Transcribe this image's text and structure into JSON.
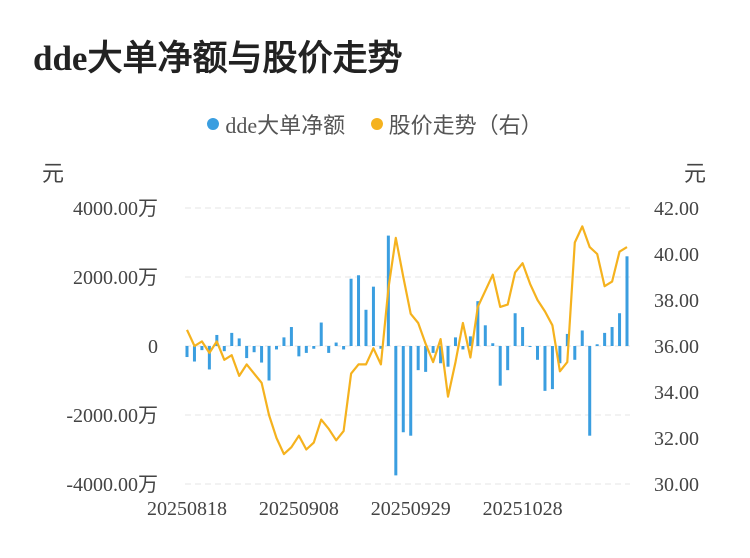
{
  "title": "dde大单净额与股价走势",
  "legend": [
    {
      "label": "dde大单净额",
      "color": "#3a9ee0"
    },
    {
      "label": "股价走势（右）",
      "color": "#f5b21e"
    }
  ],
  "left_unit": "元",
  "right_unit": "元",
  "chart_data": {
    "type": "bar+line",
    "x_ticks": [
      "20250818",
      "20250908",
      "20250929",
      "20251028"
    ],
    "y_left": {
      "ticks": [
        "4000.00万",
        "2000.00万",
        "0",
        "-2000.00万",
        "-4000.00万"
      ],
      "range": [
        -4000,
        4000
      ],
      "unit": "万"
    },
    "y_right": {
      "ticks": [
        "42.00",
        "40.00",
        "38.00",
        "36.00",
        "34.00",
        "32.00",
        "30.00"
      ],
      "range": [
        30,
        42
      ]
    },
    "grid": true,
    "series": [
      {
        "name": "dde大单净额",
        "type": "bar",
        "axis": "left",
        "color": "#3a9ee0",
        "values": [
          -320,
          -450,
          -120,
          -680,
          320,
          -150,
          380,
          220,
          -350,
          -180,
          -480,
          -1000,
          -100,
          250,
          550,
          -300,
          -200,
          -80,
          680,
          -200,
          100,
          -100,
          1950,
          2050,
          1050,
          1720,
          -80,
          3200,
          -3750,
          -2500,
          -2600,
          -700,
          -750,
          -200,
          -500,
          -600,
          250,
          -100,
          280,
          1300,
          600,
          80,
          -1150,
          -700,
          950,
          550,
          -30,
          -400,
          -1300,
          -1250,
          -500,
          350,
          -400,
          450,
          -2600,
          50,
          380,
          550,
          950,
          2600
        ]
      },
      {
        "name": "股价走势（右）",
        "type": "line",
        "axis": "right",
        "color": "#f5b21e",
        "values": [
          36.7,
          36.0,
          36.2,
          35.7,
          36.2,
          35.4,
          35.6,
          34.7,
          35.2,
          34.8,
          34.4,
          33.0,
          32.0,
          31.3,
          31.6,
          32.1,
          31.5,
          31.8,
          32.8,
          32.4,
          31.9,
          32.3,
          34.8,
          35.2,
          35.2,
          35.9,
          35.2,
          38.5,
          40.7,
          39.0,
          37.4,
          37.0,
          36.1,
          35.3,
          36.3,
          33.8,
          35.3,
          37.0,
          35.5,
          37.7,
          38.4,
          39.1,
          37.7,
          37.8,
          39.2,
          39.6,
          38.7,
          38.0,
          37.5,
          36.9,
          34.9,
          35.3,
          40.5,
          41.2,
          40.3,
          40.0,
          38.6,
          38.8,
          40.1,
          40.3
        ]
      }
    ]
  }
}
